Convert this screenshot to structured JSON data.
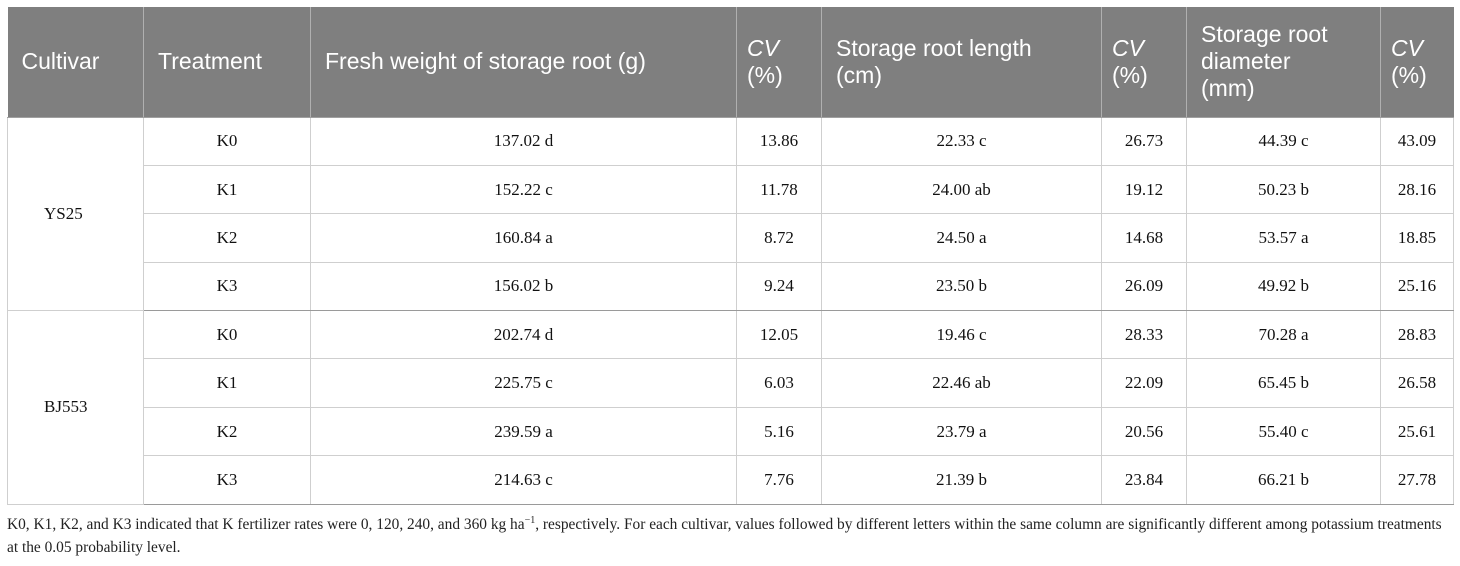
{
  "table": {
    "headers": {
      "cultivar": "Cultivar",
      "treatment": "Treatment",
      "fresh_weight": "Fresh weight of storage root (g)",
      "cv_letters": "CV",
      "cv_unit": "(%)",
      "length_line1": "Storage root length",
      "length_line2": "(cm)",
      "diameter_line1": "Storage root",
      "diameter_line2": "diameter",
      "diameter_line3": "(mm)"
    },
    "groups": [
      {
        "cultivar": "YS25",
        "rows": [
          {
            "treatment": "K0",
            "fresh_weight": "137.02 d",
            "cv1": "13.86",
            "length": "22.33 c",
            "cv2": "26.73",
            "diameter": "44.39 c",
            "cv3": "43.09"
          },
          {
            "treatment": "K1",
            "fresh_weight": "152.22 c",
            "cv1": "11.78",
            "length": "24.00 ab",
            "cv2": "19.12",
            "diameter": "50.23 b",
            "cv3": "28.16"
          },
          {
            "treatment": "K2",
            "fresh_weight": "160.84 a",
            "cv1": "8.72",
            "length": "24.50 a",
            "cv2": "14.68",
            "diameter": "53.57 a",
            "cv3": "18.85"
          },
          {
            "treatment": "K3",
            "fresh_weight": "156.02 b",
            "cv1": "9.24",
            "length": "23.50 b",
            "cv2": "26.09",
            "diameter": "49.92 b",
            "cv3": "25.16"
          }
        ]
      },
      {
        "cultivar": "BJ553",
        "rows": [
          {
            "treatment": "K0",
            "fresh_weight": "202.74 d",
            "cv1": "12.05",
            "length": "19.46 c",
            "cv2": "28.33",
            "diameter": "70.28 a",
            "cv3": "28.83"
          },
          {
            "treatment": "K1",
            "fresh_weight": "225.75 c",
            "cv1": "6.03",
            "length": "22.46 ab",
            "cv2": "22.09",
            "diameter": "65.45 b",
            "cv3": "26.58"
          },
          {
            "treatment": "K2",
            "fresh_weight": "239.59 a",
            "cv1": "5.16",
            "length": "23.79 a",
            "cv2": "20.56",
            "diameter": "55.40 c",
            "cv3": "25.61"
          },
          {
            "treatment": "K3",
            "fresh_weight": "214.63 c",
            "cv1": "7.76",
            "length": "21.39 b",
            "cv2": "23.84",
            "diameter": "66.21 b",
            "cv3": "27.78"
          }
        ]
      }
    ]
  },
  "footnote": {
    "part1": "K0, K1, K2, and K3 indicated that K fertilizer rates were 0, 120, 240, and 360 kg ha",
    "superscript": "−1",
    "part2": ", respectively. For each cultivar, values followed by different letters within the same column are significantly different among potassium treatments at the 0.05 probability level."
  }
}
